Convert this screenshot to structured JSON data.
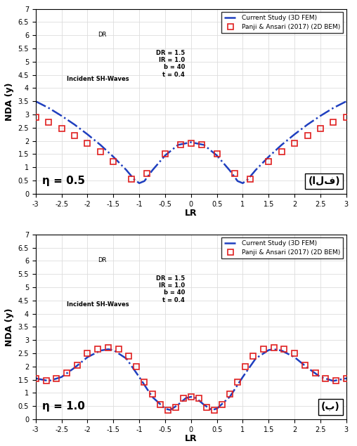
{
  "chart_data": [
    {
      "type": "line",
      "x_label": "LR",
      "y_label": "NDA (y)",
      "panel_label": "(الف)",
      "eta_label": "η = 0.5",
      "annotations": [
        "DR = 1.5",
        "IR = 1.0",
        "b = 40",
        "t = 0.4"
      ],
      "inset_labels": [
        "DR",
        "Incident SH-Waves"
      ],
      "xlim": [
        -3,
        3
      ],
      "ylim": [
        0,
        7
      ],
      "xticks": [
        -3,
        -2.5,
        -2,
        -1.5,
        -1,
        -0.5,
        0,
        0.5,
        1,
        1.5,
        2,
        2.5,
        3
      ],
      "yticks": [
        0,
        0.5,
        1,
        1.5,
        2,
        2.5,
        3,
        3.5,
        4,
        4.5,
        5,
        5.5,
        6,
        6.5,
        7
      ],
      "grid": true,
      "legend": "upper right",
      "series": [
        {
          "name": "Current Study (3D FEM)",
          "type": "line",
          "color": "#1f3fbf",
          "line_style": "dashdot",
          "marker": "none",
          "x": [
            -3,
            -2.75,
            -2.5,
            -2.25,
            -2,
            -1.75,
            -1.5,
            -1.25,
            -1.1,
            -1,
            -0.9,
            -0.75,
            -0.5,
            -0.25,
            0,
            0.25,
            0.5,
            0.75,
            0.9,
            1,
            1.1,
            1.25,
            1.5,
            1.75,
            2,
            2.25,
            2.5,
            2.75,
            3
          ],
          "values": [
            3.5,
            3.25,
            2.95,
            2.62,
            2.25,
            1.85,
            1.4,
            0.9,
            0.55,
            0.4,
            0.48,
            0.88,
            1.45,
            1.85,
            1.95,
            1.85,
            1.45,
            0.88,
            0.48,
            0.4,
            0.55,
            0.9,
            1.4,
            1.85,
            2.25,
            2.62,
            2.95,
            3.25,
            3.5
          ]
        },
        {
          "name": "Panji & Ansari (2017) (2D BEM)",
          "type": "scatter",
          "color": "#e02020",
          "line_style": "none",
          "marker": "square",
          "x": [
            -3,
            -2.75,
            -2.5,
            -2.25,
            -2,
            -1.75,
            -1.5,
            -1.15,
            -0.85,
            -0.5,
            -0.2,
            0,
            0.2,
            0.5,
            0.85,
            1.15,
            1.5,
            1.75,
            2,
            2.25,
            2.5,
            2.75,
            3
          ],
          "values": [
            2.9,
            2.72,
            2.48,
            2.2,
            1.9,
            1.58,
            1.22,
            0.55,
            0.78,
            1.5,
            1.85,
            1.9,
            1.85,
            1.5,
            0.78,
            0.55,
            1.22,
            1.58,
            1.9,
            2.2,
            2.48,
            2.72,
            2.9
          ]
        }
      ]
    },
    {
      "type": "line",
      "x_label": "LR",
      "y_label": "NDA (y)",
      "panel_label": "(ب)",
      "eta_label": "η = 1.0",
      "annotations": [
        "DR = 1.5",
        "IR = 1.0",
        "b = 40",
        "t = 0.4"
      ],
      "inset_labels": [
        "DR",
        "Incident SH-Waves"
      ],
      "xlim": [
        -3,
        3
      ],
      "ylim": [
        0,
        7
      ],
      "xticks": [
        -3,
        -2.5,
        -2,
        -1.5,
        -1,
        -0.5,
        0,
        0.5,
        1,
        1.5,
        2,
        2.5,
        3
      ],
      "yticks": [
        0,
        0.5,
        1,
        1.5,
        2,
        2.5,
        3,
        3.5,
        4,
        4.5,
        5,
        5.5,
        6,
        6.5,
        7
      ],
      "grid": true,
      "legend": "upper right",
      "series": [
        {
          "name": "Current Study (3D FEM)",
          "type": "line",
          "color": "#1f3fbf",
          "line_style": "dashdot",
          "marker": "none",
          "x": [
            -3,
            -2.75,
            -2.5,
            -2.25,
            -2,
            -1.75,
            -1.6,
            -1.5,
            -1.25,
            -1,
            -0.75,
            -0.5,
            -0.4,
            -0.25,
            -0.1,
            0,
            0.1,
            0.25,
            0.4,
            0.5,
            0.75,
            1,
            1.25,
            1.5,
            1.6,
            1.75,
            2,
            2.25,
            2.5,
            2.75,
            3
          ],
          "values": [
            1.55,
            1.45,
            1.6,
            1.95,
            2.35,
            2.6,
            2.65,
            2.62,
            2.3,
            1.6,
            0.85,
            0.4,
            0.35,
            0.55,
            0.8,
            0.85,
            0.8,
            0.55,
            0.35,
            0.4,
            0.85,
            1.6,
            2.3,
            2.62,
            2.65,
            2.6,
            2.35,
            1.95,
            1.6,
            1.45,
            1.55
          ]
        },
        {
          "name": "Panji & Ansari (2017) (2D BEM)",
          "type": "scatter",
          "color": "#e02020",
          "line_style": "none",
          "marker": "square",
          "x": [
            -3,
            -2.8,
            -2.6,
            -2.4,
            -2.2,
            -2,
            -1.8,
            -1.6,
            -1.4,
            -1.2,
            -1.05,
            -0.9,
            -0.75,
            -0.6,
            -0.45,
            -0.3,
            -0.15,
            0,
            0.15,
            0.3,
            0.45,
            0.6,
            0.75,
            0.9,
            1.05,
            1.2,
            1.4,
            1.6,
            1.8,
            2,
            2.2,
            2.4,
            2.6,
            2.8,
            3
          ],
          "values": [
            1.55,
            1.45,
            1.55,
            1.75,
            2.05,
            2.5,
            2.65,
            2.7,
            2.65,
            2.4,
            2.0,
            1.4,
            0.95,
            0.55,
            0.35,
            0.45,
            0.8,
            0.85,
            0.8,
            0.45,
            0.35,
            0.55,
            0.95,
            1.4,
            2.0,
            2.4,
            2.65,
            2.7,
            2.65,
            2.5,
            2.05,
            1.75,
            1.55,
            1.45,
            1.55
          ]
        }
      ]
    }
  ]
}
